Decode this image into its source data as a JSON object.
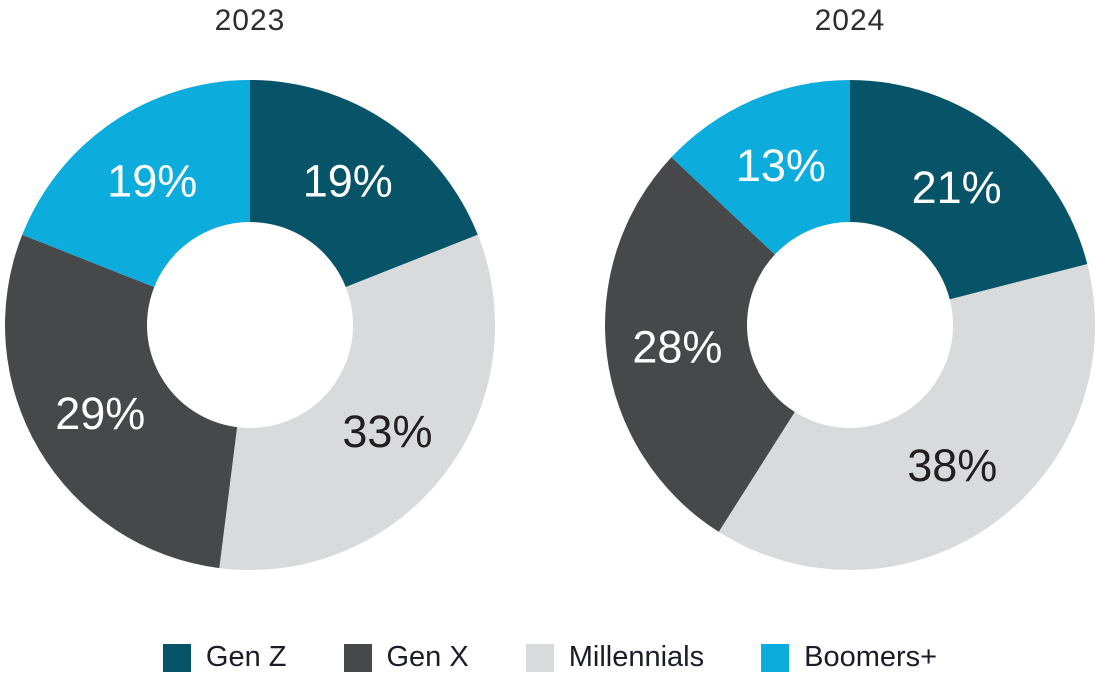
{
  "page": {
    "background_color": "#ffffff"
  },
  "legend": {
    "position": "bottom",
    "text_color": "#1b1c27",
    "items": [
      {
        "label": "Gen Z",
        "color": "#075468"
      },
      {
        "label": "Gen X",
        "color": "#47484a"
      },
      {
        "label": "Millennials",
        "color": "#d9dadb"
      },
      {
        "label": "Boomers+",
        "color": "#0cacdd"
      }
    ]
  },
  "chart_data": [
    {
      "type": "pie",
      "subtype": "donut",
      "title": "2023",
      "title_color": "#2d2d33",
      "categories": [
        "Gen Z",
        "Millennials",
        "Gen X",
        "Boomers+"
      ],
      "values": [
        19,
        33,
        29,
        19
      ],
      "data_labels": [
        "19%",
        "33%",
        "29%",
        "19%"
      ],
      "colors": [
        "#075468",
        "#d9dadb",
        "#47484a",
        "#0cacdd"
      ],
      "data_label_colors": [
        "#ffffff",
        "#231f20",
        "#ffffff",
        "#ffffff"
      ],
      "start_angle_deg": 0,
      "direction": "clockwise",
      "inner_radius_ratio": 0.42,
      "hole_color": "#ffffff",
      "legend_position": "bottom"
    },
    {
      "type": "pie",
      "subtype": "donut",
      "title": "2024",
      "title_color": "#2d2d33",
      "categories": [
        "Gen Z",
        "Millennials",
        "Gen X",
        "Boomers+"
      ],
      "values": [
        21,
        38,
        28,
        13
      ],
      "data_labels": [
        "21%",
        "38%",
        "28%",
        "13%"
      ],
      "colors": [
        "#075468",
        "#d9dadb",
        "#47484a",
        "#0cacdd"
      ],
      "data_label_colors": [
        "#ffffff",
        "#231f20",
        "#ffffff",
        "#ffffff"
      ],
      "start_angle_deg": 0,
      "direction": "clockwise",
      "inner_radius_ratio": 0.42,
      "hole_color": "#ffffff",
      "legend_position": "bottom"
    }
  ]
}
